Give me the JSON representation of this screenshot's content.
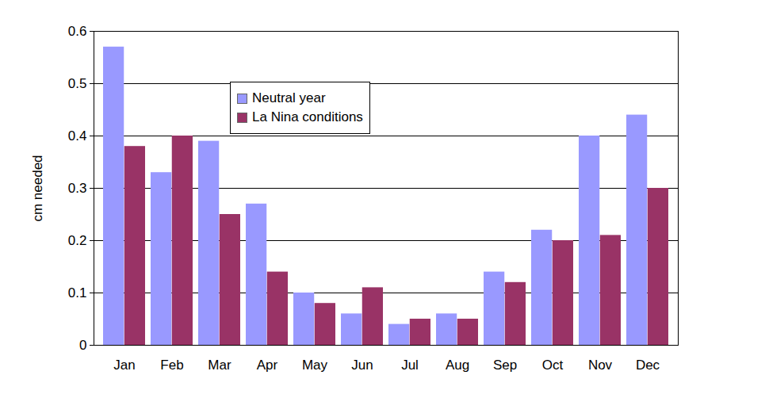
{
  "chart_data": {
    "type": "bar",
    "y_label": "cm needed",
    "categories": [
      "Jan",
      "Feb",
      "Mar",
      "Apr",
      "May",
      "Jun",
      "Jul",
      "Aug",
      "Sep",
      "Oct",
      "Nov",
      "Dec"
    ],
    "series": [
      {
        "name": "Neutral year",
        "color": "#9999ff",
        "values": [
          0.57,
          0.33,
          0.39,
          0.27,
          0.1,
          0.06,
          0.04,
          0.06,
          0.14,
          0.22,
          0.4,
          0.44
        ]
      },
      {
        "name": "La Nina conditions",
        "color": "#993366",
        "values": [
          0.38,
          0.4,
          0.25,
          0.14,
          0.08,
          0.11,
          0.05,
          0.05,
          0.12,
          0.2,
          0.21,
          0.3
        ]
      }
    ],
    "ylim": [
      0,
      0.6
    ],
    "yticks": [
      0,
      0.1,
      0.2,
      0.3,
      0.4,
      0.5,
      0.6
    ],
    "grid": true,
    "legend": "top-left"
  }
}
